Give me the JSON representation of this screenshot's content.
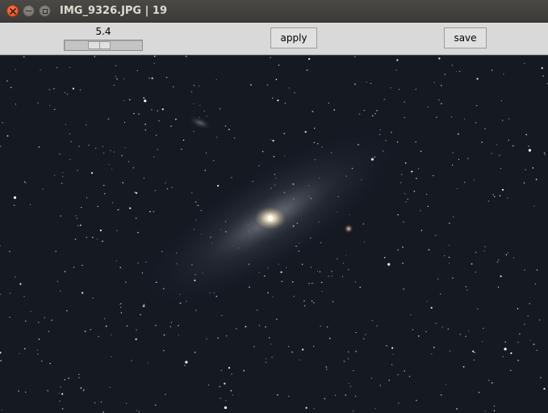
{
  "window": {
    "title": "IMG_9326.JPG | 19",
    "controls": [
      "close-icon",
      "minimize-icon",
      "maximize-icon"
    ]
  },
  "toolbar": {
    "scale": {
      "value_label": "5.4",
      "level": 0.42
    },
    "apply_label": "apply",
    "save_label": "save"
  },
  "colors": {
    "titlebar": "#3c3b37",
    "title_text": "#dfdbd2",
    "close_button": "#df4a16",
    "toolbar": "#d9d9d9",
    "sky": "#141922"
  },
  "image": {
    "description_icon": "night-sky-photo"
  }
}
